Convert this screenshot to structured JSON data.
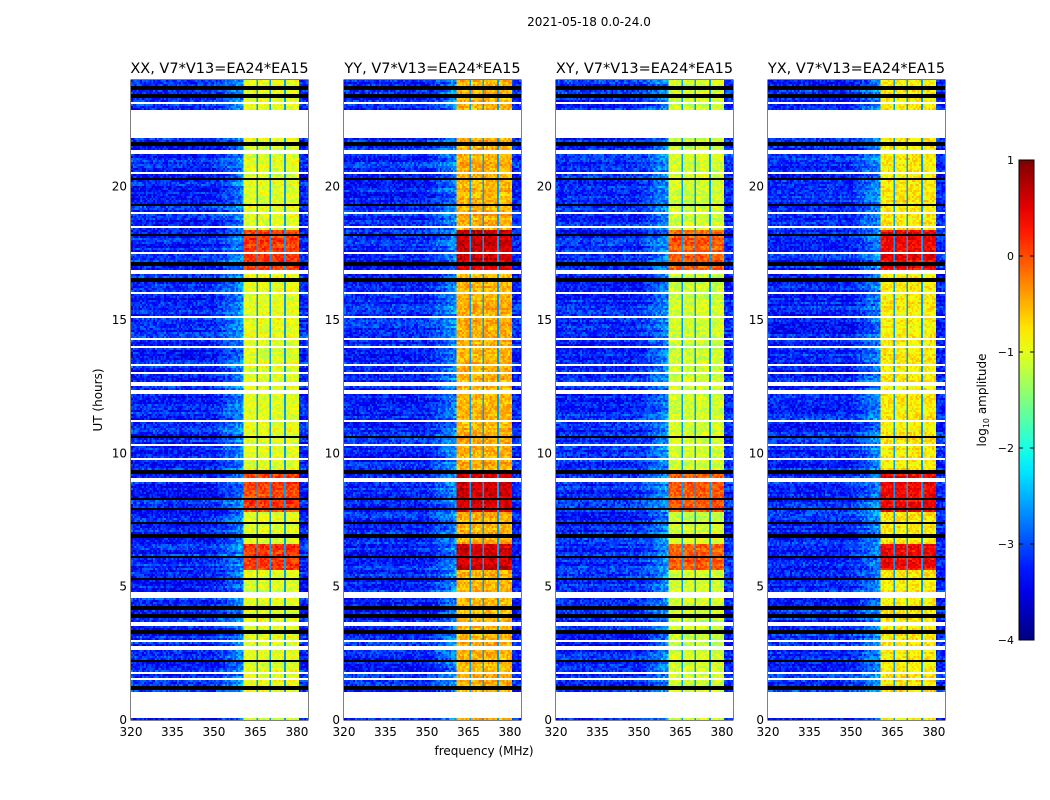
{
  "chart_data": {
    "type": "heatmap",
    "title": "2021-05-18 0.0-24.0",
    "xlabel": "frequency (MHz)",
    "ylabel": "UT (hours)",
    "xlim": [
      320,
      384
    ],
    "ylim": [
      0,
      24
    ],
    "xticks": [
      "320",
      "335",
      "350",
      "365",
      "380"
    ],
    "xtick_values": [
      320,
      335,
      350,
      365,
      380
    ],
    "yticks": [
      "0",
      "5",
      "10",
      "15",
      "20"
    ],
    "ytick_values": [
      0,
      5,
      10,
      15,
      20
    ],
    "panels": [
      {
        "title": "XX, V7*V13=EA24*EA15",
        "band_level": -1.0,
        "flare_level": 0.1
      },
      {
        "title": "YY, V7*V13=EA24*EA15",
        "band_level": -0.5,
        "flare_level": 0.6
      },
      {
        "title": "XY, V7*V13=EA24*EA15",
        "band_level": -1.1,
        "flare_level": -0.1
      },
      {
        "title": "YX, V7*V13=EA24*EA15",
        "band_level": -0.8,
        "flare_level": 0.4
      }
    ],
    "background_level": -3.2,
    "signal_band_mhz": [
      360.7,
      380.4
    ],
    "subband_edges_mhz": [
      365.5,
      370.5,
      375.5
    ],
    "bright_periods_hours": [
      [
        16.7,
        18.4
      ],
      [
        5.6,
        6.6
      ],
      [
        7.8,
        9.4
      ]
    ],
    "flagged_ranges_hours": [
      [
        0.07,
        1.05
      ],
      [
        21.8,
        22.9
      ],
      [
        4.55,
        4.8
      ]
    ],
    "flagged_lines_hours": [
      1.55,
      1.75,
      2.7,
      2.95,
      3.6,
      9.0,
      9.8,
      10.3,
      11.2,
      12.3,
      12.6,
      13.0,
      13.3,
      14.0,
      14.3,
      15.1,
      16.0,
      16.8,
      17.5,
      18.5,
      19.0,
      20.5,
      21.3,
      23.15
    ],
    "scan_boundary_hours": [
      1.2,
      2.2,
      3.3,
      3.9,
      4.2,
      5.3,
      6.1,
      6.9,
      7.4,
      7.9,
      8.3,
      9.3,
      10.6,
      16.5,
      17.1,
      18.2,
      19.3,
      20.3,
      21.6,
      23.4,
      23.7
    ],
    "colorbar": {
      "label": "log10 amplitude",
      "label_main": "log",
      "label_sub": "10",
      "label_rest": " amplitude",
      "range": [
        -4,
        1
      ],
      "ticks": [
        "1",
        "0",
        "−1",
        "−2",
        "−3",
        "−4"
      ],
      "tick_values": [
        1,
        0,
        -1,
        -2,
        -3,
        -4
      ],
      "colormap": "jet"
    }
  }
}
